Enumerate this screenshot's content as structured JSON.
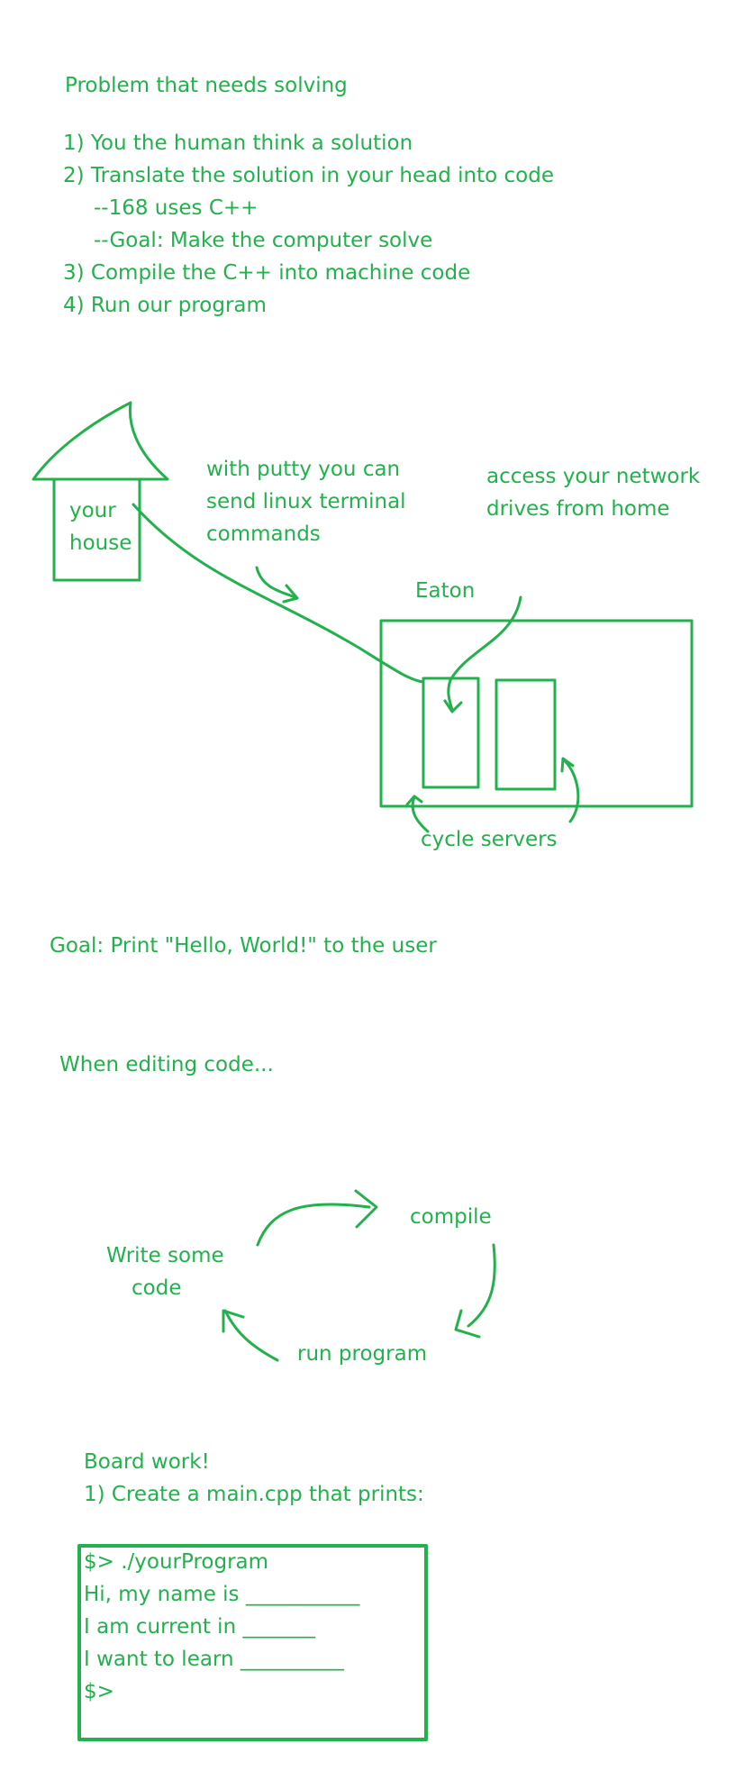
{
  "notes": {
    "heading": "Problem that needs solving",
    "steps": [
      "1) You the human think a solution",
      "2) Translate the solution in your head into code",
      "--168 uses C++",
      "--Goal: Make the computer solve",
      "3) Compile the C++ into machine code",
      "4) Run our program"
    ],
    "diagram": {
      "house_line1": "your",
      "house_line2": "house",
      "putty_line1": "with putty you can",
      "putty_line2": "send linux terminal",
      "putty_line3": "commands",
      "network_line1": "access your network",
      "network_line2": "drives from home",
      "building": "Eaton",
      "servers": "cycle servers"
    },
    "goal": "Goal: Print \"Hello, World!\" to the user",
    "editing_heading": "When editing code...",
    "cycle": {
      "write_line1": "Write some",
      "write_line2": "code",
      "compile": "compile",
      "run": "run program"
    },
    "board": {
      "heading": "Board work!",
      "task": "1) Create a main.cpp that prints:",
      "terminal_lines": [
        "$> ./yourProgram",
        "Hi, my name is ___________",
        "I am current in _______",
        "I want to learn __________",
        "$>"
      ]
    }
  },
  "colors": {
    "ink": "#22b14c",
    "paper": "#ffffff"
  }
}
